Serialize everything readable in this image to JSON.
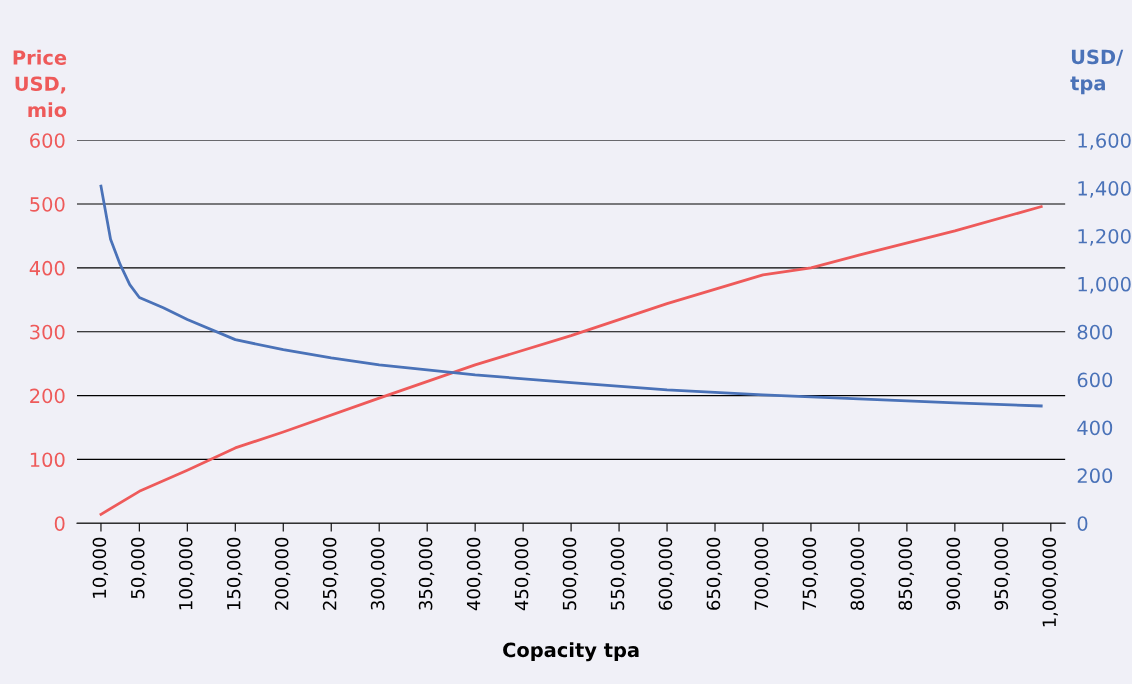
{
  "chart_data": {
    "type": "line",
    "xlabel": "Copacity tpa",
    "ylabel": "Price\nUSD,\nmio",
    "y2label": "USD/\ntpa",
    "xlim": [
      -15000,
      1015000
    ],
    "ylim": [
      0,
      600
    ],
    "y2lim": [
      0,
      1600
    ],
    "xticks": [
      {
        "value": 10000,
        "label": "10,000"
      },
      {
        "value": 50000,
        "label": "50,000"
      },
      {
        "value": 100000,
        "label": "100,000"
      },
      {
        "value": 150000,
        "label": "150,000"
      },
      {
        "value": 200000,
        "label": "200,000"
      },
      {
        "value": 250000,
        "label": "250,000"
      },
      {
        "value": 300000,
        "label": "300,000"
      },
      {
        "value": 350000,
        "label": "350,000"
      },
      {
        "value": 400000,
        "label": "400,000"
      },
      {
        "value": 450000,
        "label": "450,000"
      },
      {
        "value": 500000,
        "label": "500,000"
      },
      {
        "value": 550000,
        "label": "550,000"
      },
      {
        "value": 600000,
        "label": "600,000"
      },
      {
        "value": 650000,
        "label": "650,000"
      },
      {
        "value": 700000,
        "label": "700,000"
      },
      {
        "value": 750000,
        "label": "750,000"
      },
      {
        "value": 800000,
        "label": "800,000"
      },
      {
        "value": 850000,
        "label": "850,000"
      },
      {
        "value": 900000,
        "label": "900,000"
      },
      {
        "value": 950000,
        "label": "950,000"
      },
      {
        "value": 1000000,
        "label": "1,000,000"
      }
    ],
    "yticks": [
      0,
      100,
      200,
      300,
      400,
      500,
      600
    ],
    "y2ticks": [
      0,
      200,
      400,
      600,
      800,
      {
        "value": 1000,
        "label": "1,000"
      },
      {
        "value": 1200,
        "label": "1,200"
      },
      {
        "value": 1400,
        "label": "1,400"
      },
      {
        "value": 1600,
        "label": "1,600"
      }
    ],
    "grid": "y",
    "marker": "none",
    "line_style": "solid",
    "series": [
      {
        "color": "#ee5a5a",
        "x": [
          10000,
          50000,
          100000,
          150000,
          200000,
          300000,
          400000,
          500000,
          600000,
          700000,
          750000,
          800000,
          900000,
          990000
        ],
        "values": [
          14,
          50,
          83,
          118,
          143,
          196,
          248,
          294,
          344,
          389,
          400,
          420,
          458,
          496
        ]
      },
      {
        "color": "#4a72b8",
        "axis": "y2",
        "x": [
          10000,
          20000,
          30000,
          40000,
          50000,
          75000,
          100000,
          150000,
          200000,
          250000,
          300000,
          400000,
          500000,
          600000,
          700000,
          800000,
          900000,
          990000
        ],
        "values": [
          1408,
          1186,
          1081,
          997,
          943,
          900,
          851,
          767,
          725,
          691,
          662,
          620,
          587,
          557,
          536,
          520,
          503,
          490
        ]
      }
    ]
  }
}
